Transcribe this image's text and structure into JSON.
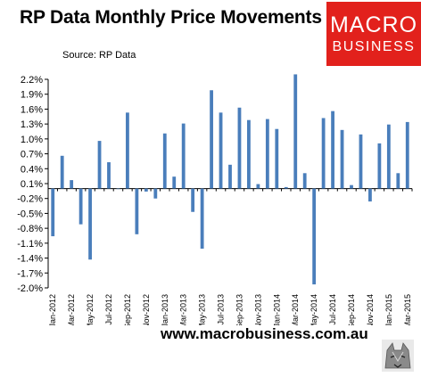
{
  "header": {
    "title": "RP Data Monthly Price Movements",
    "source": "Source: RP Data"
  },
  "logo": {
    "line1": "MACRO",
    "line2": "BUSINESS"
  },
  "footer": {
    "url": "www.macrobusiness.com.au"
  },
  "colors": {
    "bar": "#4a7ebb",
    "logo_bg": "#e2211c"
  },
  "chart_data": {
    "type": "bar",
    "title": "RP Data Monthly Price Movements",
    "ylim": [
      -2.0,
      2.2
    ],
    "yticks": [
      "2.2%",
      "1.9%",
      "1.6%",
      "1.3%",
      "1.0%",
      "0.7%",
      "0.4%",
      "0.1%",
      "-0.2%",
      "-0.5%",
      "-0.8%",
      "-1.1%",
      "-1.4%",
      "-1.7%",
      "-2.0%"
    ],
    "ytick_values": [
      2.2,
      1.9,
      1.6,
      1.3,
      1.0,
      0.7,
      0.4,
      0.1,
      -0.2,
      -0.5,
      -0.8,
      -1.1,
      -1.4,
      -1.7,
      -2.0
    ],
    "xtick_labels": [
      "Jan-2012",
      "Mar-2012",
      "May-2012",
      "Jul-2012",
      "Sep-2012",
      "Nov-2012",
      "Jan-2013",
      "Mar-2013",
      "May-2013",
      "Jul-2013",
      "Sep-2013",
      "Nov-2013",
      "Jan-2014",
      "Mar-2014",
      "May-2014",
      "Jul-2014",
      "Sep-2014",
      "Nov-2014",
      "Jan-2015",
      "Mar-2015"
    ],
    "categories": [
      "Jan-2012",
      "Feb-2012",
      "Mar-2012",
      "Apr-2012",
      "May-2012",
      "Jun-2012",
      "Jul-2012",
      "Aug-2012",
      "Sep-2012",
      "Oct-2012",
      "Nov-2012",
      "Dec-2012",
      "Jan-2013",
      "Feb-2013",
      "Mar-2013",
      "Apr-2013",
      "May-2013",
      "Jun-2013",
      "Jul-2013",
      "Aug-2013",
      "Sep-2013",
      "Oct-2013",
      "Nov-2013",
      "Dec-2013",
      "Jan-2014",
      "Feb-2014",
      "Mar-2014",
      "Apr-2014",
      "May-2014",
      "Jun-2014",
      "Jul-2014",
      "Aug-2014",
      "Sep-2014",
      "Oct-2014",
      "Nov-2014",
      "Dec-2014",
      "Jan-2015",
      "Feb-2015",
      "Mar-2015"
    ],
    "values": [
      -0.96,
      0.66,
      0.17,
      -0.72,
      -1.43,
      0.96,
      0.53,
      0.0,
      1.53,
      -0.92,
      -0.06,
      -0.2,
      1.11,
      0.24,
      1.31,
      -0.47,
      -1.21,
      1.98,
      1.53,
      0.48,
      1.63,
      1.38,
      0.09,
      1.4,
      1.2,
      0.03,
      2.3,
      0.31,
      -1.93,
      1.42,
      1.56,
      1.18,
      0.07,
      1.09,
      -0.26,
      0.91,
      1.29,
      0.31,
      1.34
    ],
    "grid": false
  }
}
